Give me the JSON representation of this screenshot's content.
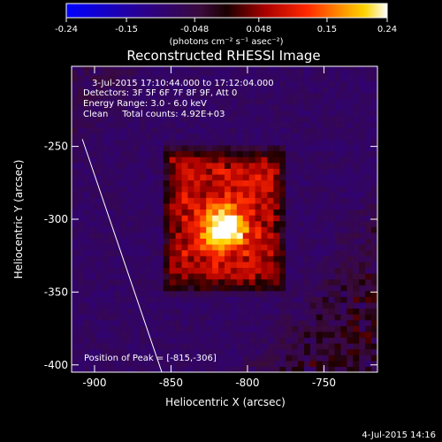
{
  "chart_data": {
    "type": "heatmap",
    "title": "Reconstructed RHESSI Image",
    "info_lines": [
      "3-Jul-2015 17:10:44.000 to 17:12:04.000",
      "Detectors: 3F 5F 6F 7F 8F 9F, Att 0",
      "Energy Range: 3.0 - 6.0 keV",
      "Clean     Total counts: 4.92E+03"
    ],
    "peak_label": "Position of Peak = [-815,-306]",
    "xlabel": "Heliocentric X (arcsec)",
    "ylabel": "Heliocentric Y (arcsec)",
    "xlim": [
      -915,
      -715
    ],
    "ylim": [
      -405,
      -195
    ],
    "x_ticks": [
      -900,
      -850,
      -800,
      -750
    ],
    "y_ticks": [
      -250,
      -300,
      -350,
      -400
    ],
    "x_tick_labels": [
      "-900",
      "-850",
      "-800",
      "-750"
    ],
    "y_tick_labels": [
      "-250",
      "-300",
      "-350",
      "-400"
    ],
    "peak": {
      "x": -815,
      "y": -306,
      "value": 0.24
    },
    "background_value": -0.08,
    "source": {
      "x": -815,
      "y": -300,
      "half_width": 42,
      "half_height": 52,
      "value": 0.09
    },
    "colorbar": {
      "min": -0.24,
      "max": 0.24,
      "tick_values": [
        -0.24,
        -0.15,
        -0.048,
        0.048,
        0.15,
        0.24
      ],
      "tick_labels": [
        "-0.24",
        "-0.15",
        "-0.048",
        "0.048",
        "0.15",
        "0.24"
      ],
      "units_label": "(photons cm⁻² s⁻¹ asec⁻²)",
      "colormap": "Rainbow + white (IDL color table 3)"
    },
    "limb_line": {
      "points": [
        [
          -908,
          -245
        ],
        [
          -856,
          -405
        ]
      ]
    },
    "colors": {
      "limb": "#ffffff",
      "background": "#000000",
      "axes": "#ffffff"
    }
  },
  "footer_timestamp": "4-Jul-2015 14:16"
}
